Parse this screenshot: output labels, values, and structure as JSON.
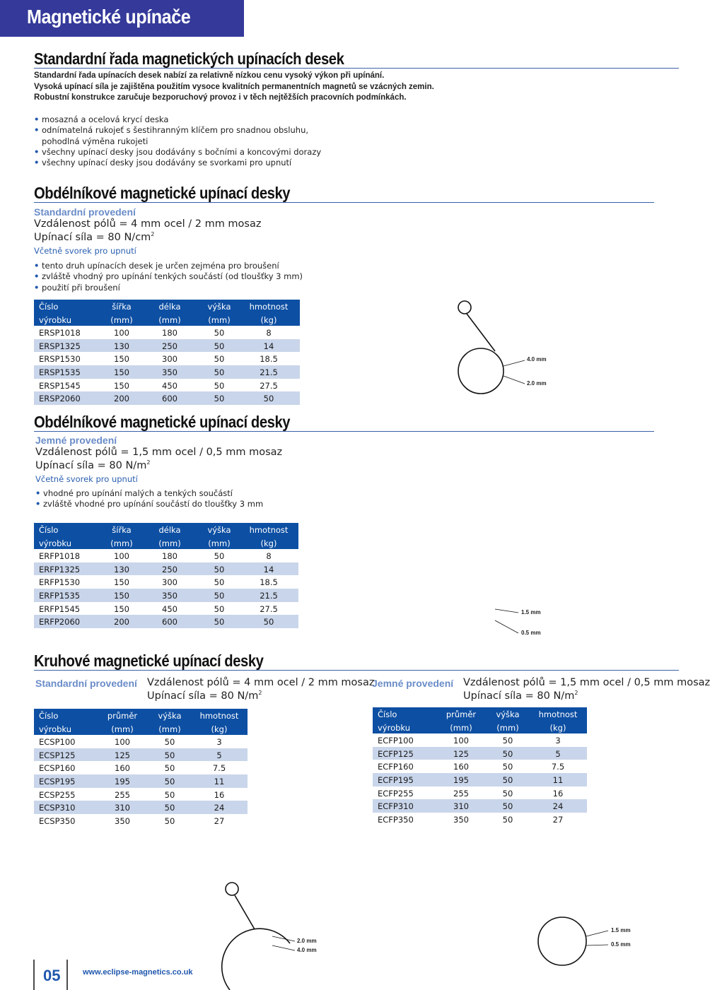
{
  "header": {
    "title": "Magnetické upínače"
  },
  "intro": {
    "title": "Standardní řada magnetických upínacích desek",
    "lines": [
      "Standardní řada upínacích desek nabízí za relativně nízkou cenu vysoký výkon při upínání.",
      "Vysoká upínací síla je zajištěna použitím vysoce kvalitních permanentních magnetů se vzácných zemin.",
      "Robustní konstrukce zaručuje bezporuchový provoz i v těch nejtěžších pracovních podmínkách."
    ],
    "bullets": [
      [
        "mosazná a ocelová krycí deska"
      ],
      [
        "odnímatelná rukojeť s šestihranným klíčem pro snadnou obsluhu,",
        "pohodlná výměna rukojeti"
      ],
      [
        "všechny upínací desky jsou dodávány s bočními a koncovými dorazy"
      ],
      [
        "všechny upínací desky jsou dodávány se svorkami pro upnutí"
      ]
    ]
  },
  "rect_std": {
    "title": "Obdélníkové magnetické upínací desky",
    "subtitle": "Standardní provedení",
    "pole_distance": "Vzdálenost pólů = 4 mm ocel / 2 mm mosaz",
    "force": "Upínací síla = 80 N/cm",
    "force_sup": "2",
    "note": "Včetně svorek pro upnutí",
    "bullets": [
      [
        "tento druh upínacích desek je určen zejména pro broušení"
      ],
      [
        "zvláště vhodný pro upínání tenkých součástí (od tloušťky 3 mm)"
      ],
      [
        "použití při broušení"
      ]
    ],
    "table": {
      "header": [
        [
          "Číslo",
          "šířka",
          "délka",
          "výška",
          "hmotnost"
        ],
        [
          "výrobku",
          "(mm)",
          "(mm)",
          "(mm)",
          "(kg)"
        ]
      ],
      "rows": [
        [
          "ERSP1018",
          "100",
          "180",
          "50",
          "8"
        ],
        [
          "ERSP1325",
          "130",
          "250",
          "50",
          "14"
        ],
        [
          "ERSP1530",
          "150",
          "300",
          "50",
          "18.5"
        ],
        [
          "ERSP1535",
          "150",
          "350",
          "50",
          "21.5"
        ],
        [
          "ERSP1545",
          "150",
          "450",
          "50",
          "27.5"
        ],
        [
          "ERSP2060",
          "200",
          "600",
          "50",
          "50"
        ]
      ]
    },
    "diagram": [
      "4.0 mm",
      "2.0 mm"
    ]
  },
  "rect_fine": {
    "title": "Obdélníkové magnetické upínací desky",
    "subtitle": "Jemné provedení",
    "pole_distance": "Vzdálenost pólů = 1,5 mm ocel / 0,5 mm mosaz",
    "force": "Upínací síla = 80 N/m",
    "force_sup": "2",
    "note": "Včetně svorek pro upnutí",
    "bullets": [
      [
        "vhodné pro upínání malých a tenkých součástí"
      ],
      [
        "zvláště vhodné pro upínání součástí do tloušťky 3 mm"
      ]
    ],
    "table": {
      "header": [
        [
          "Číslo",
          "šířka",
          "délka",
          "výška",
          "hmotnost"
        ],
        [
          "výrobku",
          "(mm)",
          "(mm)",
          "(mm)",
          "(kg)"
        ]
      ],
      "rows": [
        [
          "ERFP1018",
          "100",
          "180",
          "50",
          "8"
        ],
        [
          "ERFP1325",
          "130",
          "250",
          "50",
          "14"
        ],
        [
          "ERFP1530",
          "150",
          "300",
          "50",
          "18.5"
        ],
        [
          "ERFP1535",
          "150",
          "350",
          "50",
          "21.5"
        ],
        [
          "ERFP1545",
          "150",
          "450",
          "50",
          "27.5"
        ],
        [
          "ERFP2060",
          "200",
          "600",
          "50",
          "50"
        ]
      ]
    },
    "diagram": [
      "1.5 mm",
      "0.5 mm"
    ]
  },
  "round": {
    "title": "Kruhové magnetické upínací desky",
    "left": {
      "subtitle": "Standardní provedení",
      "pole_distance": "Vzdálenost pólů = 4 mm ocel / 2 mm mosaz",
      "force": "Upínací síla = 80 N/m",
      "force_sup": "2",
      "table": {
        "header": [
          [
            "Číslo",
            "průměr",
            "výška",
            "hmotnost"
          ],
          [
            "výrobku",
            "(mm)",
            "(mm)",
            "(kg)"
          ]
        ],
        "rows": [
          [
            "ECSP100",
            "100",
            "50",
            "3"
          ],
          [
            "ECSP125",
            "125",
            "50",
            "5"
          ],
          [
            "ECSP160",
            "160",
            "50",
            "7.5"
          ],
          [
            "ECSP195",
            "195",
            "50",
            "11"
          ],
          [
            "ECSP255",
            "255",
            "50",
            "16"
          ],
          [
            "ECSP310",
            "310",
            "50",
            "24"
          ],
          [
            "ECSP350",
            "350",
            "50",
            "27"
          ]
        ]
      },
      "diagram": [
        "2.0 mm",
        "4.0 mm"
      ]
    },
    "right": {
      "subtitle": "Jemné provedení",
      "pole_distance": "Vzdálenost pólů = 1,5 mm ocel / 0,5 mm mosaz",
      "force": "Upínací síla = 80 N/m",
      "force_sup": "2",
      "table": {
        "header": [
          [
            "Číslo",
            "průměr",
            "výška",
            "hmotnost"
          ],
          [
            "výrobku",
            "(mm)",
            "(mm)",
            "(kg)"
          ]
        ],
        "rows": [
          [
            "ECFP100",
            "100",
            "50",
            "3"
          ],
          [
            "ECFP125",
            "125",
            "50",
            "5"
          ],
          [
            "ECFP160",
            "160",
            "50",
            "7.5"
          ],
          [
            "ECFP195",
            "195",
            "50",
            "11"
          ],
          [
            "ECFP255",
            "255",
            "50",
            "16"
          ],
          [
            "ECFP310",
            "310",
            "50",
            "24"
          ],
          [
            "ECFP350",
            "350",
            "50",
            "27"
          ]
        ]
      },
      "diagram": [
        "1.5 mm",
        "0.5 mm"
      ]
    }
  },
  "footer": {
    "page": "05",
    "url": "www.eclipse-magnetics.co.uk"
  }
}
